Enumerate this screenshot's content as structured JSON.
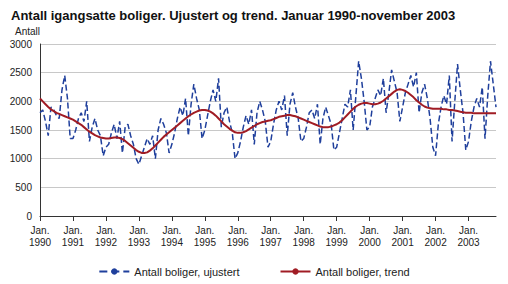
{
  "chart_data": {
    "type": "line",
    "title": "Antall igangsatte boliger. Ujustert og trend. Januar 1990-november 2003",
    "y_label": "Antall",
    "categories": [
      "Jan.\n1990",
      null,
      null,
      null,
      null,
      null,
      null,
      null,
      null,
      null,
      null,
      null,
      "Jan.\n1991",
      null,
      null,
      null,
      null,
      null,
      null,
      null,
      null,
      null,
      null,
      null,
      "Jan.\n1992",
      null,
      null,
      null,
      null,
      null,
      null,
      null,
      null,
      null,
      null,
      null,
      "Jan.\n1993",
      null,
      null,
      null,
      null,
      null,
      null,
      null,
      null,
      null,
      null,
      null,
      "Jan.\n1994",
      null,
      null,
      null,
      null,
      null,
      null,
      null,
      null,
      null,
      null,
      null,
      "Jan.\n1995",
      null,
      null,
      null,
      null,
      null,
      null,
      null,
      null,
      null,
      null,
      null,
      "Jan.\n1996",
      null,
      null,
      null,
      null,
      null,
      null,
      null,
      null,
      null,
      null,
      null,
      "Jan.\n1997",
      null,
      null,
      null,
      null,
      null,
      null,
      null,
      null,
      null,
      null,
      null,
      "Jan.\n1998",
      null,
      null,
      null,
      null,
      null,
      null,
      null,
      null,
      null,
      null,
      null,
      "Jan.\n1999",
      null,
      null,
      null,
      null,
      null,
      null,
      null,
      null,
      null,
      null,
      null,
      "Jan.\n2000",
      null,
      null,
      null,
      null,
      null,
      null,
      null,
      null,
      null,
      null,
      null,
      "Jan.\n2001",
      null,
      null,
      null,
      null,
      null,
      null,
      null,
      null,
      null,
      null,
      null,
      "Jan.\n2002",
      null,
      null,
      null,
      null,
      null,
      null,
      null,
      null,
      null,
      null,
      null,
      "Jan.\n2003",
      null,
      null,
      null,
      null,
      null,
      null,
      null,
      null,
      null,
      null
    ],
    "series": [
      {
        "name": "Antall boliger, ujustert",
        "color": "#1f3f9c",
        "line_style": "dashed",
        "values": [
          1800,
          1850,
          1650,
          1400,
          1900,
          1850,
          1750,
          1700,
          2200,
          2450,
          2050,
          1350,
          1350,
          1500,
          1700,
          1800,
          1650,
          2000,
          1300,
          1550,
          1700,
          1500,
          1400,
          1050,
          1200,
          1250,
          1450,
          1600,
          1350,
          1650,
          1100,
          1550,
          1600,
          1400,
          1250,
          1000,
          900,
          1050,
          1200,
          1350,
          1250,
          1400,
          1000,
          1500,
          1700,
          1600,
          1450,
          1100,
          1250,
          1450,
          1700,
          1900,
          1750,
          2050,
          1400,
          1950,
          2300,
          2050,
          1850,
          1350,
          1500,
          1750,
          2000,
          2200,
          2000,
          2400,
          1550,
          1800,
          1900,
          1650,
          1450,
          1000,
          1100,
          1300,
          1550,
          1750,
          1600,
          1850,
          1250,
          1800,
          2000,
          1850,
          1650,
          1200,
          1300,
          1600,
          1850,
          2000,
          1850,
          2100,
          1400,
          1950,
          2150,
          1900,
          1700,
          1300,
          1350,
          1550,
          1800,
          1850,
          1700,
          1950,
          1250,
          1700,
          1900,
          1750,
          1600,
          1150,
          1200,
          1450,
          1700,
          1950,
          1900,
          2200,
          1500,
          2100,
          2700,
          2400,
          2000,
          1500,
          1550,
          1900,
          2050,
          2200,
          2100,
          2400,
          1800,
          2150,
          2550,
          2350,
          2150,
          1650,
          1900,
          2150,
          2300,
          2450,
          2250,
          2500,
          1800,
          2150,
          2300,
          2050,
          1700,
          1200,
          1050,
          1600,
          1900,
          2100,
          1950,
          2450,
          1300,
          2000,
          2650,
          2200,
          1800,
          1150,
          1300,
          1650,
          1900,
          2050,
          1900,
          2250,
          1350,
          2100,
          2700,
          2300,
          1900
        ]
      },
      {
        "name": "Antall boliger, trend",
        "color": "#a01c24",
        "line_style": "solid",
        "values": [
          2050,
          2000,
          1950,
          1900,
          1860,
          1830,
          1800,
          1780,
          1760,
          1740,
          1720,
          1700,
          1680,
          1650,
          1620,
          1590,
          1550,
          1510,
          1470,
          1440,
          1410,
          1390,
          1370,
          1360,
          1350,
          1350,
          1360,
          1370,
          1370,
          1360,
          1340,
          1310,
          1270,
          1230,
          1190,
          1150,
          1120,
          1100,
          1100,
          1110,
          1140,
          1180,
          1230,
          1280,
          1330,
          1380,
          1420,
          1460,
          1500,
          1540,
          1580,
          1620,
          1660,
          1700,
          1740,
          1770,
          1800,
          1820,
          1840,
          1850,
          1850,
          1840,
          1820,
          1790,
          1750,
          1700,
          1650,
          1600,
          1560,
          1520,
          1490,
          1460,
          1450,
          1450,
          1460,
          1480,
          1510,
          1540,
          1570,
          1600,
          1620,
          1640,
          1650,
          1660,
          1670,
          1690,
          1710,
          1730,
          1740,
          1750,
          1760,
          1760,
          1750,
          1740,
          1720,
          1700,
          1680,
          1660,
          1640,
          1620,
          1600,
          1580,
          1560,
          1550,
          1550,
          1550,
          1560,
          1580,
          1600,
          1630,
          1670,
          1720,
          1770,
          1820,
          1870,
          1910,
          1940,
          1960,
          1970,
          1970,
          1960,
          1950,
          1950,
          1960,
          1980,
          2010,
          2050,
          2090,
          2130,
          2170,
          2200,
          2210,
          2200,
          2180,
          2150,
          2110,
          2070,
          2020,
          1980,
          1940,
          1910,
          1890,
          1880,
          1870,
          1870,
          1870,
          1870,
          1860,
          1860,
          1850,
          1850,
          1840,
          1830,
          1820,
          1810,
          1800,
          1800,
          1800,
          1790,
          1790,
          1790,
          1790,
          1790,
          1790,
          1790,
          1790,
          1790
        ]
      }
    ],
    "ylim": [
      0,
      3000
    ],
    "yticks": [
      0,
      500,
      1000,
      1500,
      2000,
      2500,
      3000
    ],
    "grid": true,
    "legend": "bottom"
  }
}
